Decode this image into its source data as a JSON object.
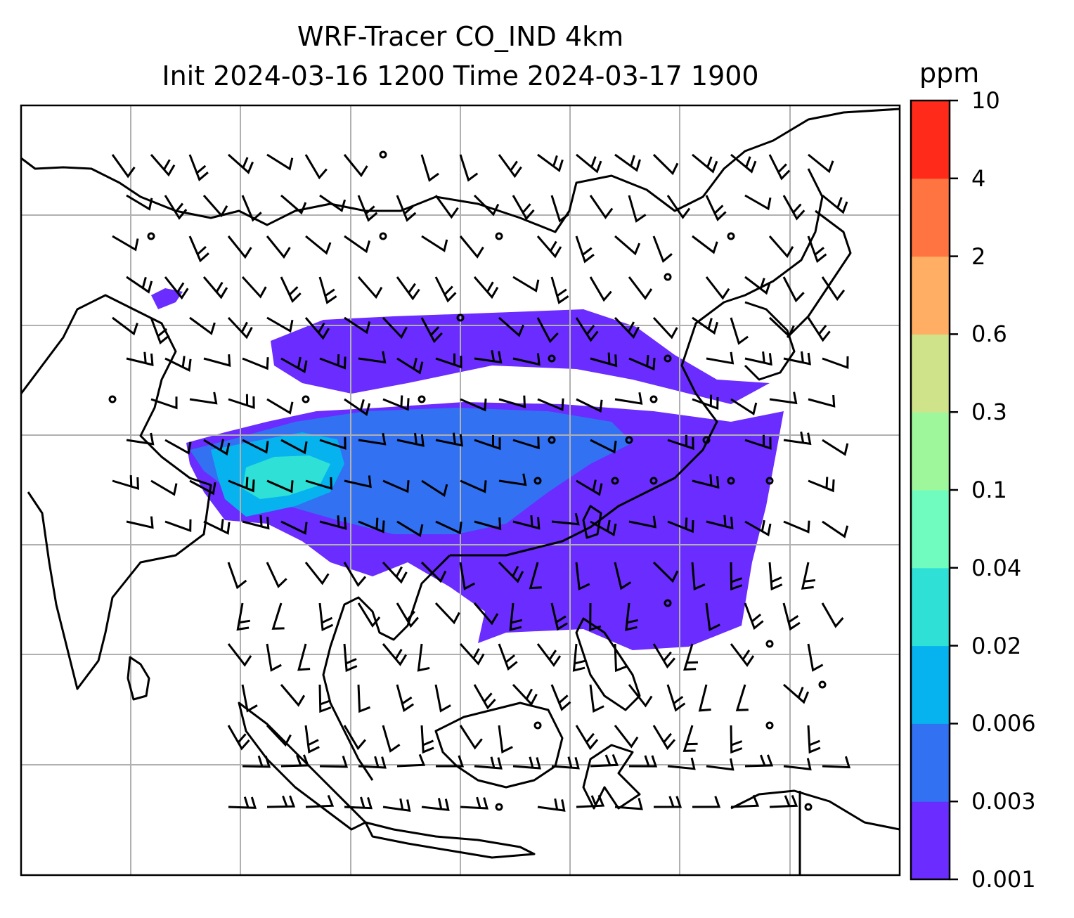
{
  "title": {
    "line1": "WRF-Tracer CO_IND 4km",
    "line2": "Init 2024-03-16 1200 Time 2024-03-17 1900"
  },
  "colorbar": {
    "unit": "ppm",
    "levels": [
      "0.001",
      "0.003",
      "0.006",
      "0.02",
      "0.04",
      "0.1",
      "0.3",
      "0.6",
      "2",
      "4",
      "10"
    ],
    "colors": [
      "#6a2cff",
      "#3171f2",
      "#06b3ee",
      "#2fe0d6",
      "#6ffcbe",
      "#9ff79c",
      "#cfe38a",
      "#ffae63",
      "#ff7440",
      "#ff2a1a"
    ]
  },
  "map": {
    "grid": "on",
    "coastlines": "on",
    "wind_barbs": "on",
    "field_colors": {
      "low": "#6a2cff",
      "mid": "#3171f2",
      "high": "#06b3ee",
      "peak": "#2fe0d6"
    }
  }
}
